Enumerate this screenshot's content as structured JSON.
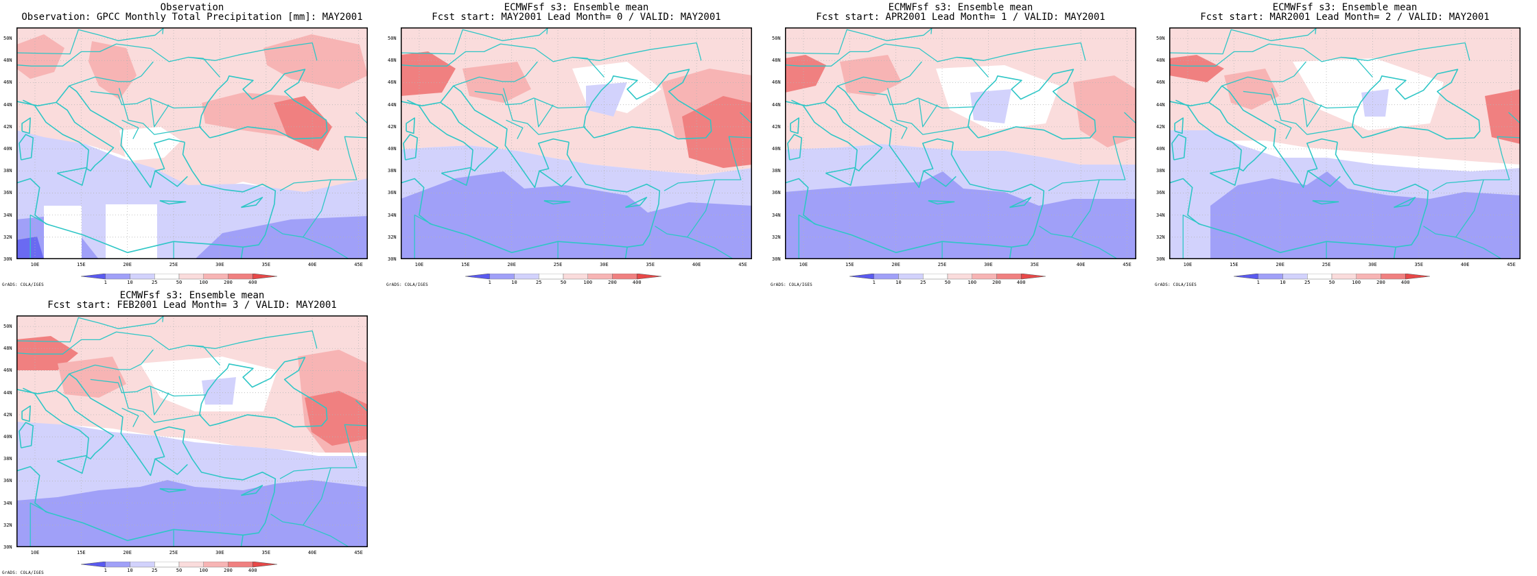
{
  "panels": [
    {
      "title1": "Observation",
      "title2": "Observation: GPCC Monthly Total Precipitation [mm]: MAY2001",
      "kind": "obs"
    },
    {
      "title1": "ECMWFsf s3: Ensemble mean",
      "title2": "Fcst start: MAY2001  Lead Month= 0 / VALID: MAY2001",
      "kind": "lead0"
    },
    {
      "title1": "ECMWFsf s3: Ensemble mean",
      "title2": "Fcst start: APR2001  Lead Month= 1 / VALID: MAY2001",
      "kind": "lead1"
    },
    {
      "title1": "ECMWFsf s3: Ensemble mean",
      "title2": "Fcst start: MAR2001  Lead Month= 2 / VALID: MAY2001",
      "kind": "lead2"
    },
    {
      "title1": "ECMWFsf s3: Ensemble mean",
      "title2": "Fcst start: FEB2001  Lead Month= 3 / VALID: MAY2001",
      "kind": "lead3"
    }
  ],
  "lat_labels": [
    "50N",
    "48N",
    "46N",
    "44N",
    "42N",
    "40N",
    "38N",
    "36N",
    "34N",
    "32N",
    "30N"
  ],
  "lat_values": [
    50,
    48,
    46,
    44,
    42,
    40,
    38,
    36,
    34,
    32,
    30
  ],
  "lon_labels": [
    "10E",
    "15E",
    "20E",
    "25E",
    "30E",
    "35E",
    "40E",
    "45E"
  ],
  "lon_values": [
    10,
    15,
    20,
    25,
    30,
    35,
    40,
    45
  ],
  "extent": {
    "lon_min": 8,
    "lon_max": 46,
    "lat_min": 30,
    "lat_max": 51
  },
  "colorbar": {
    "labels": [
      "1",
      "10",
      "25",
      "50",
      "100",
      "200",
      "400"
    ],
    "colors": [
      "#5a5af0",
      "#a0a0f8",
      "#d2d2fc",
      "#ffffff",
      "#fadcdc",
      "#f7b4b4",
      "#f08080",
      "#e84848"
    ]
  },
  "colors": {
    "coast": "#2ec6c6",
    "grid": "#b4b4b4",
    "dark_blue": "#a0a0f8",
    "light_blue": "#d2d2fc",
    "pale_red": "#fadcdc",
    "mid_red": "#f7b4b4",
    "red": "#f08080",
    "deep_blue": "#6a6af2"
  },
  "credit": "GrADS: COLA/IGES"
}
